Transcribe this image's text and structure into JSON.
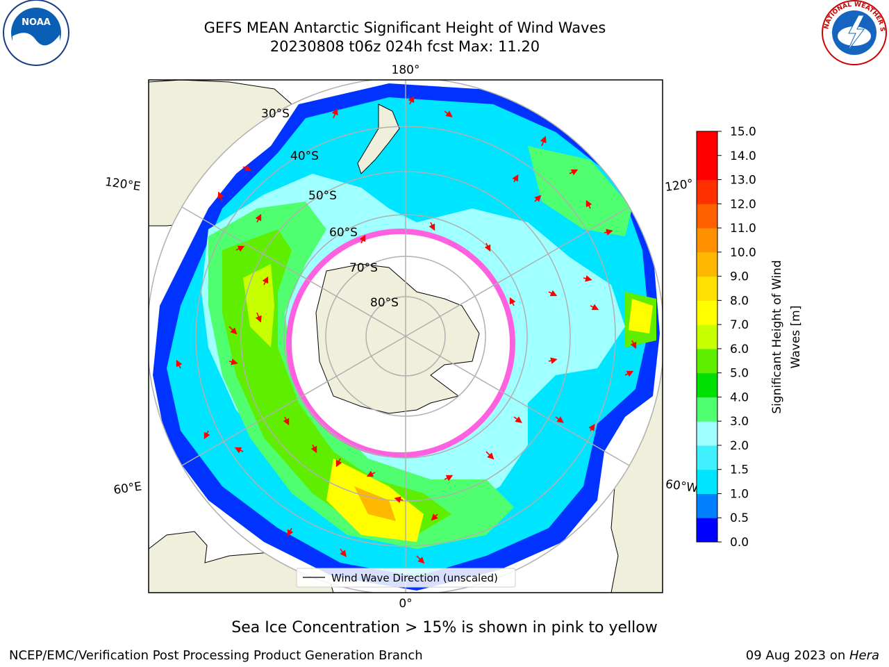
{
  "title": {
    "line1": "GEFS MEAN Antarctic Significant Height of Wind Waves",
    "line2": "20230808 t06z 024h fcst   Max: 11.20"
  },
  "map": {
    "lon_labels": {
      "top": "180°",
      "bottom": "0°",
      "left_upper": "120°E",
      "right_upper": "120°",
      "left_lower": "60°E",
      "right_lower": "60°W"
    },
    "lat_labels": [
      "30°S",
      "40°S",
      "50°S",
      "60°S",
      "70°S",
      "80°S"
    ],
    "legend": "Wind Wave Direction (unscaled)"
  },
  "colorbar": {
    "label_line1": "Significant Height of Wind",
    "label_line2": "Waves [m]",
    "ticks": [
      "0.0",
      "0.5",
      "1.0",
      "1.5",
      "2.0",
      "3.0",
      "4.0",
      "5.0",
      "6.0",
      "7.0",
      "8.0",
      "9.0",
      "10.0",
      "11.0",
      "12.0",
      "13.0",
      "14.0",
      "15.0"
    ],
    "colors": [
      "#0000ff",
      "#0080ff",
      "#00e5ff",
      "#40f0ff",
      "#a0ffff",
      "#50ff70",
      "#00e000",
      "#60ee00",
      "#c8ff00",
      "#ffff00",
      "#ffe000",
      "#ffb800",
      "#ff9000",
      "#ff6000",
      "#ff3000",
      "#ff0000",
      "#ff0000"
    ]
  },
  "footer": {
    "sea_ice_note": "Sea Ice Concentration > 15% is shown in pink to yellow",
    "credit": "NCEP/EMC/Verification Post Processing Product Generation Branch",
    "date": "09 Aug 2023 on ",
    "machine": "Hera"
  },
  "logos": {
    "left": "NOAA",
    "right": "NATIONAL WEATHER SERVICE"
  }
}
